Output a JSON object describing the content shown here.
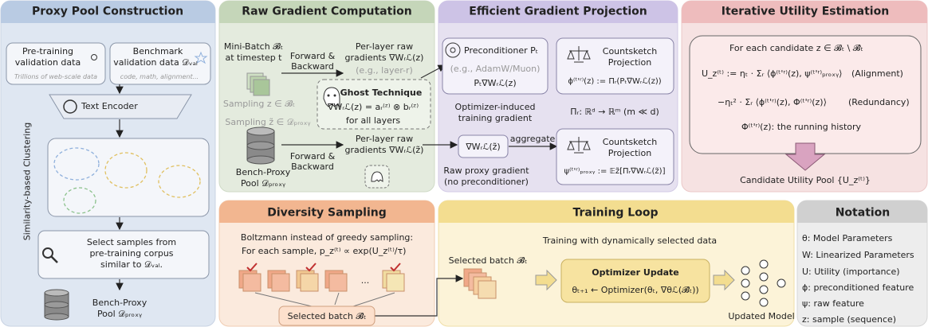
{
  "panels": {
    "proxy_pool": {
      "title": "Proxy Pool Construction",
      "pretrain": [
        "Pre-training",
        "validation data"
      ],
      "pretrain_note": "Trillions of web-scale data",
      "bench": [
        "Benchmark",
        "validation data 𝒟ᵥₐₗ"
      ],
      "bench_note": "code, math, alignment...",
      "encoder": "Text Encoder",
      "clustering": "Similarity-based Clustering",
      "select": [
        "Select samples from",
        "pre-training corpus",
        "similar to 𝒟ᵥₐₗ."
      ],
      "output": [
        "Bench-Proxy",
        "Pool 𝒟ₚᵣₒₓᵧ"
      ]
    },
    "raw_gradient": {
      "title": "Raw Gradient Computation",
      "minibatch": [
        "Mini-Batch 𝓑ₜ",
        "at timestep t"
      ],
      "fb1": [
        "Forward &",
        "Backward"
      ],
      "per_layer1": [
        "Per-layer raw",
        "gradients ∇Wᵣℒ(z)"
      ],
      "example": "(e.g., layer-r)",
      "sampling1": "Sampling z ∈ 𝓑ₜ",
      "ghost": {
        "title": "Ghost Technique",
        "formula": "∇Wᵣℒ(z) = aᵣ⁽ᶻ⁾ ⊗ bᵣ⁽ᶻ⁾",
        "note": "for all layers"
      },
      "sampling2": "Sampling z̃ ∈ 𝒟ₚᵣₒₓᵧ",
      "pool": [
        "Bench-Proxy",
        "Pool 𝒟ₚᵣₒₓᵧ"
      ],
      "fb2": [
        "Forward &",
        "Backward"
      ],
      "per_layer2": [
        "Per-layer raw",
        "gradients ∇Wᵣℒ(z̃)"
      ]
    },
    "projection": {
      "title": "Efficient Gradient Projection",
      "preconditioner": "Preconditioner Pₜ",
      "precond_example": "(e.g., AdamW/Muon)",
      "precond_grad": "Pₜ∇Wᵣℒ(z)",
      "countsketch1": [
        "Countsketch",
        "Projection"
      ],
      "phi": "ϕ⁽ᵗ'ʳ⁾(z) := Πᵣ(Pₜ∇Wᵣℒ(z))",
      "optimizer_induced": [
        "Optimizer-induced",
        "training gradient"
      ],
      "pi": "Πᵣ: ℝᵈ → ℝᵐ (m ≪ d)",
      "raw_proxy_grad": "∇Wᵣℒ(z̃)",
      "aggregate": "aggregate",
      "countsketch2": [
        "Countsketch",
        "Projection"
      ],
      "psi": "ψ⁽ᵗ'ʳ⁾ₚᵣₒₓᵧ := 𝔼z̃[Πᵣ∇Wᵣℒ(z̃)]",
      "raw_proxy": [
        "Raw proxy gradient",
        "(no preconditioner)"
      ]
    },
    "utility": {
      "title": "Iterative Utility Estimation",
      "candidate": "For each candidate z ∈ 𝓑ₜ \\ 𝓑̂ₜ",
      "alignment_formula": "U_z⁽ᵗ⁾ := ηₜ · Σᵣ ⟨ϕ⁽ᵗ'ʳ⁾(z), ψ⁽ᵗ'ʳ⁾ₚᵣₒₓᵧ⟩",
      "alignment": "(Alignment)",
      "redundancy_formula": "−ηₜ² · Σᵣ ⟨ϕ⁽ᵗ'ʳ⁾(z), Φ⁽ᵗ'ʳ⁾(z)⟩",
      "redundancy": "(Redundancy)",
      "history": "Φ⁽ᵗ'ʳ⁾(z): the running history",
      "pool": "Candidate Utility Pool {U_z⁽ᵗ⁾}"
    },
    "diversity": {
      "title": "Diversity Sampling",
      "boltzmann": "Boltzmann instead of greedy sampling:",
      "sample": "For each sample, p_z⁽ᵗ⁾ ∝ exp(U_z⁽ᵗ⁾/τ)",
      "ellipsis": "...",
      "selected": "Selected batch 𝓑̂ₜ"
    },
    "training": {
      "title": "Training Loop",
      "caption": "Training with dynamically selected data",
      "selected": "Selected batch 𝓑̂ₜ",
      "update_title": "Optimizer Update",
      "update_formula": "θₜ₊₁ ← Optimizer(θₜ, ∇θℒ(𝓑̂ₜ))",
      "model": "Updated Model"
    },
    "notation": {
      "title": "Notation",
      "items": [
        "θ: Model Parameters",
        "W: Linearized Parameters",
        "U: Utility (importance)",
        "ϕ: preconditioned feature",
        "ψ: raw feature",
        "z: sample (sequence)"
      ]
    }
  }
}
